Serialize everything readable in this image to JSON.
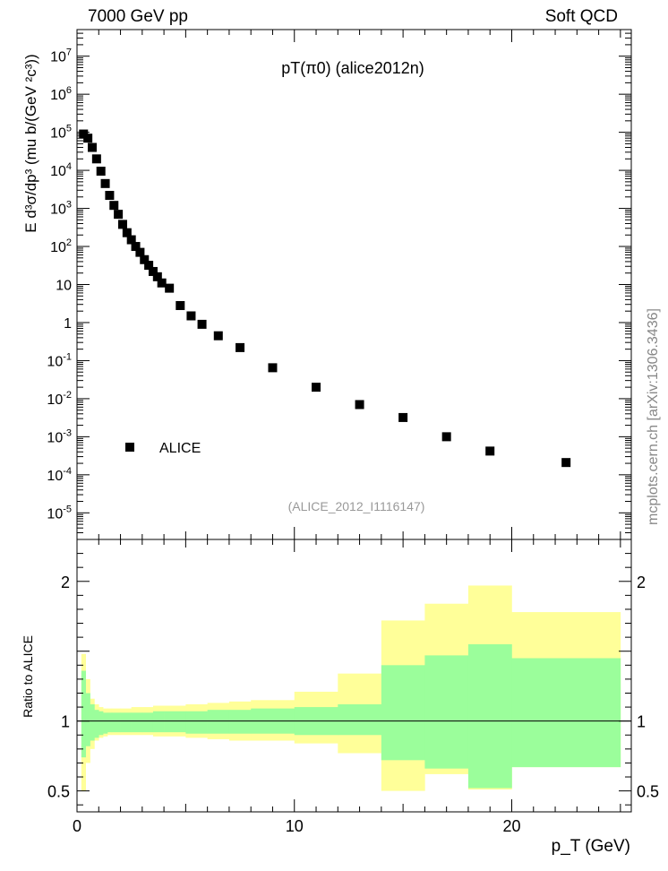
{
  "header": {
    "left": "7000 GeV pp",
    "right": "Soft QCD"
  },
  "side_label": "mcplots.cern.ch [arXiv:1306.3436]",
  "chart_data": [
    {
      "type": "scatter",
      "panel": "main",
      "title": "pT(π0) (alice2012n)",
      "analysis_tag": "(ALICE_2012_I1116147)",
      "ylabel": "E d³σ/dp³ (mu b/(GeV ²c³))",
      "yscale": "log",
      "ylim": [
        2e-06,
        50000000.0
      ],
      "xlim": [
        0,
        25.5
      ],
      "yticks": [
        "10^{-5}",
        "10^{-4}",
        "10^{-3}",
        "10^{-2}",
        "10^{-1}",
        "1",
        "10",
        "10^{2}",
        "10^{3}",
        "10^{4}",
        "10^{5}",
        "10^{6}",
        "10^{7}"
      ],
      "legend": {
        "label": "ALICE",
        "placement": "lower-left"
      },
      "series": [
        {
          "name": "ALICE",
          "x": [
            0.3,
            0.5,
            0.7,
            0.9,
            1.1,
            1.3,
            1.5,
            1.7,
            1.9,
            2.1,
            2.3,
            2.5,
            2.7,
            2.9,
            3.1,
            3.3,
            3.5,
            3.7,
            3.9,
            4.25,
            4.75,
            5.25,
            5.75,
            6.5,
            7.5,
            9.0,
            11.0,
            13.0,
            15.0,
            17.0,
            19.0,
            22.5
          ],
          "y": [
            90000,
            70000,
            40000,
            20000,
            9500,
            4500,
            2200,
            1200,
            700,
            380,
            230,
            150,
            100,
            70,
            45,
            32,
            22,
            16,
            11,
            8,
            2.8,
            1.5,
            0.9,
            0.45,
            0.22,
            0.065,
            0.02,
            0.007,
            0.0032,
            0.001,
            0.00042,
            0.00021
          ]
        }
      ]
    },
    {
      "type": "area",
      "panel": "ratio",
      "ylabel": "Ratio to ALICE",
      "xlabel": "p_T (GeV)",
      "xlim": [
        0,
        25.5
      ],
      "ylim": [
        0.35,
        2.3
      ],
      "xticks": [
        0,
        10,
        20
      ],
      "yticks": [
        0.5,
        1,
        2
      ],
      "reference_line": 1,
      "bins": {
        "edges": [
          0.2,
          0.4,
          0.6,
          0.8,
          1.0,
          1.2,
          1.4,
          1.6,
          2.0,
          2.5,
          3.0,
          3.5,
          4.0,
          5.0,
          6.0,
          7.0,
          8.0,
          10.0,
          12.0,
          14.0,
          16.0,
          18.0,
          20.0,
          25.0
        ],
        "stat_lo": [
          0.74,
          0.82,
          0.86,
          0.88,
          0.9,
          0.91,
          0.92,
          0.92,
          0.92,
          0.92,
          0.92,
          0.92,
          0.92,
          0.91,
          0.91,
          0.91,
          0.91,
          0.9,
          0.9,
          0.72,
          0.66,
          0.52,
          0.67
        ],
        "stat_hi": [
          1.36,
          1.2,
          1.12,
          1.08,
          1.07,
          1.06,
          1.06,
          1.06,
          1.06,
          1.06,
          1.06,
          1.07,
          1.07,
          1.07,
          1.08,
          1.08,
          1.09,
          1.1,
          1.12,
          1.4,
          1.47,
          1.55,
          1.45
        ],
        "syst_lo": [
          0.5,
          0.7,
          0.8,
          0.86,
          0.88,
          0.89,
          0.9,
          0.9,
          0.9,
          0.9,
          0.9,
          0.89,
          0.89,
          0.88,
          0.87,
          0.86,
          0.86,
          0.84,
          0.77,
          0.5,
          0.62,
          0.51,
          0.67
        ],
        "syst_hi": [
          1.48,
          1.3,
          1.16,
          1.12,
          1.1,
          1.09,
          1.09,
          1.09,
          1.09,
          1.1,
          1.1,
          1.11,
          1.11,
          1.12,
          1.13,
          1.14,
          1.15,
          1.21,
          1.34,
          1.72,
          1.84,
          1.97,
          1.78
        ]
      },
      "colors": {
        "inner_band": "#9bfe9b",
        "outer_band": "#ffff99"
      }
    }
  ]
}
